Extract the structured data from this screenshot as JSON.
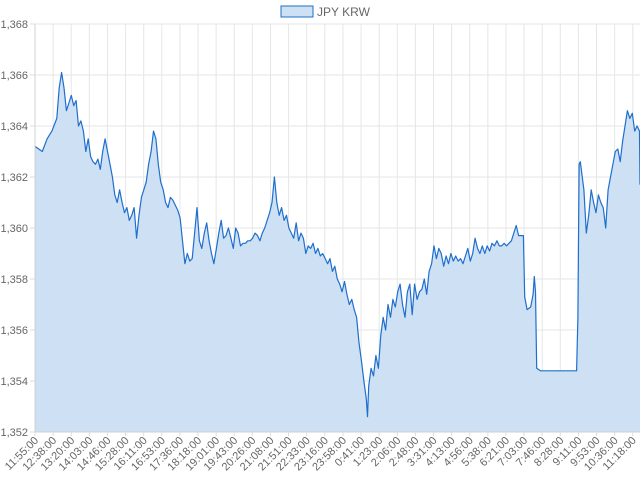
{
  "chart_data": {
    "type": "area",
    "legend_position": "top-center",
    "grid": true,
    "ylim": [
      1352,
      1368
    ],
    "y_ticks": [
      "1,368",
      "1,366",
      "1,364",
      "1,362",
      "1,360",
      "1,358",
      "1,356",
      "1,354",
      "1,352"
    ],
    "x_ticks": [
      "11:55:00",
      "12:38:00",
      "13:20:00",
      "14:03:00",
      "14:46:00",
      "15:28:00",
      "16:11:00",
      "16:53:00",
      "17:36:00",
      "18:18:00",
      "19:01:00",
      "19:43:00",
      "20:26:00",
      "21:08:00",
      "21:51:00",
      "22:33:00",
      "23:16:00",
      "23:58:00",
      "0:41:00",
      "1:23:00",
      "2:06:00",
      "2:48:00",
      "3:31:00",
      "4:13:00",
      "4:56:00",
      "5:38:00",
      "6:21:00",
      "7:03:00",
      "7:46:00",
      "8:28:00",
      "9:11:00",
      "9:53:00",
      "10:36:00",
      "11:18:00"
    ],
    "series": [
      {
        "name": "JPY KRW",
        "color": "#1f6fcc",
        "fill": "#cde0f4",
        "points": [
          [
            0.0,
            1363.2
          ],
          [
            0.3,
            1363.0
          ],
          [
            0.5,
            1363.5
          ],
          [
            0.7,
            1363.8
          ],
          [
            0.9,
            1364.3
          ],
          [
            1.0,
            1365.5
          ],
          [
            1.1,
            1366.1
          ],
          [
            1.2,
            1365.5
          ],
          [
            1.3,
            1364.6
          ],
          [
            1.4,
            1364.9
          ],
          [
            1.5,
            1365.2
          ],
          [
            1.6,
            1364.8
          ],
          [
            1.7,
            1365.0
          ],
          [
            1.8,
            1364.0
          ],
          [
            1.9,
            1364.2
          ],
          [
            2.0,
            1363.8
          ],
          [
            2.1,
            1363.0
          ],
          [
            2.2,
            1363.5
          ],
          [
            2.3,
            1362.8
          ],
          [
            2.4,
            1362.6
          ],
          [
            2.5,
            1362.5
          ],
          [
            2.6,
            1362.7
          ],
          [
            2.7,
            1362.3
          ],
          [
            2.8,
            1363.0
          ],
          [
            2.9,
            1363.5
          ],
          [
            3.0,
            1363.0
          ],
          [
            3.1,
            1362.5
          ],
          [
            3.2,
            1362.0
          ],
          [
            3.3,
            1361.3
          ],
          [
            3.4,
            1361.0
          ],
          [
            3.5,
            1361.5
          ],
          [
            3.6,
            1361.0
          ],
          [
            3.7,
            1360.6
          ],
          [
            3.8,
            1360.8
          ],
          [
            3.9,
            1360.3
          ],
          [
            4.0,
            1360.5
          ],
          [
            4.1,
            1360.8
          ],
          [
            4.2,
            1359.6
          ],
          [
            4.3,
            1360.5
          ],
          [
            4.4,
            1361.2
          ],
          [
            4.5,
            1361.5
          ],
          [
            4.6,
            1361.8
          ],
          [
            4.7,
            1362.5
          ],
          [
            4.8,
            1363.0
          ],
          [
            4.9,
            1363.8
          ],
          [
            5.0,
            1363.5
          ],
          [
            5.1,
            1362.5
          ],
          [
            5.2,
            1361.8
          ],
          [
            5.3,
            1361.5
          ],
          [
            5.4,
            1361.0
          ],
          [
            5.5,
            1360.8
          ],
          [
            5.6,
            1361.2
          ],
          [
            5.7,
            1361.1
          ],
          [
            5.8,
            1360.9
          ],
          [
            5.9,
            1360.7
          ],
          [
            6.0,
            1360.4
          ],
          [
            6.1,
            1359.5
          ],
          [
            6.2,
            1358.6
          ],
          [
            6.3,
            1359.0
          ],
          [
            6.4,
            1358.7
          ],
          [
            6.5,
            1358.8
          ],
          [
            6.6,
            1359.8
          ],
          [
            6.7,
            1360.8
          ],
          [
            6.8,
            1359.5
          ],
          [
            6.9,
            1359.2
          ],
          [
            7.0,
            1359.8
          ],
          [
            7.1,
            1360.2
          ],
          [
            7.2,
            1359.5
          ],
          [
            7.3,
            1359.0
          ],
          [
            7.4,
            1358.6
          ],
          [
            7.5,
            1359.2
          ],
          [
            7.6,
            1359.8
          ],
          [
            7.7,
            1360.3
          ],
          [
            7.8,
            1359.6
          ],
          [
            7.9,
            1359.7
          ],
          [
            8.0,
            1360.0
          ],
          [
            8.1,
            1359.6
          ],
          [
            8.2,
            1359.2
          ],
          [
            8.3,
            1360.0
          ],
          [
            8.4,
            1359.8
          ],
          [
            8.5,
            1359.3
          ],
          [
            8.6,
            1359.4
          ],
          [
            8.7,
            1359.4
          ],
          [
            8.8,
            1359.5
          ],
          [
            8.9,
            1359.5
          ],
          [
            9.0,
            1359.6
          ],
          [
            9.1,
            1359.8
          ],
          [
            9.2,
            1359.7
          ],
          [
            9.3,
            1359.5
          ],
          [
            9.4,
            1359.8
          ],
          [
            9.5,
            1360.0
          ],
          [
            9.6,
            1360.3
          ],
          [
            9.7,
            1360.6
          ],
          [
            9.8,
            1361.0
          ],
          [
            9.9,
            1362.0
          ],
          [
            10.0,
            1361.0
          ],
          [
            10.1,
            1360.5
          ],
          [
            10.2,
            1360.8
          ],
          [
            10.3,
            1360.3
          ],
          [
            10.4,
            1360.5
          ],
          [
            10.5,
            1360.0
          ],
          [
            10.6,
            1359.8
          ],
          [
            10.7,
            1359.6
          ],
          [
            10.8,
            1360.2
          ],
          [
            10.9,
            1359.5
          ],
          [
            11.0,
            1359.8
          ],
          [
            11.1,
            1359.6
          ],
          [
            11.2,
            1359.0
          ],
          [
            11.3,
            1359.3
          ],
          [
            11.4,
            1359.2
          ],
          [
            11.5,
            1359.4
          ],
          [
            11.6,
            1359.0
          ],
          [
            11.7,
            1359.2
          ],
          [
            11.8,
            1358.9
          ],
          [
            11.9,
            1359.0
          ],
          [
            12.0,
            1358.8
          ],
          [
            12.1,
            1358.6
          ],
          [
            12.2,
            1358.8
          ],
          [
            12.3,
            1358.3
          ],
          [
            12.4,
            1358.5
          ],
          [
            12.5,
            1358.0
          ],
          [
            12.6,
            1357.8
          ],
          [
            12.7,
            1357.5
          ],
          [
            12.8,
            1357.9
          ],
          [
            12.9,
            1357.4
          ],
          [
            13.0,
            1357.0
          ],
          [
            13.1,
            1357.2
          ],
          [
            13.2,
            1356.8
          ],
          [
            13.3,
            1356.5
          ],
          [
            13.4,
            1355.5
          ],
          [
            13.5,
            1354.8
          ],
          [
            13.6,
            1354.0
          ],
          [
            13.7,
            1353.3
          ],
          [
            13.75,
            1352.6
          ],
          [
            13.8,
            1353.8
          ],
          [
            13.9,
            1354.5
          ],
          [
            14.0,
            1354.2
          ],
          [
            14.1,
            1355.0
          ],
          [
            14.2,
            1354.5
          ],
          [
            14.3,
            1355.8
          ],
          [
            14.4,
            1356.5
          ],
          [
            14.5,
            1356.0
          ],
          [
            14.6,
            1357.0
          ],
          [
            14.7,
            1356.5
          ],
          [
            14.8,
            1357.2
          ],
          [
            14.9,
            1356.9
          ],
          [
            15.0,
            1357.5
          ],
          [
            15.1,
            1357.8
          ],
          [
            15.2,
            1357.0
          ],
          [
            15.3,
            1356.5
          ],
          [
            15.4,
            1357.5
          ],
          [
            15.5,
            1357.8
          ],
          [
            15.6,
            1356.6
          ],
          [
            15.7,
            1357.8
          ],
          [
            15.8,
            1357.2
          ],
          [
            15.9,
            1357.5
          ],
          [
            16.0,
            1357.6
          ],
          [
            16.1,
            1358.0
          ],
          [
            16.2,
            1357.4
          ],
          [
            16.3,
            1358.3
          ],
          [
            16.4,
            1358.6
          ],
          [
            16.5,
            1359.3
          ],
          [
            16.6,
            1358.8
          ],
          [
            16.7,
            1359.2
          ],
          [
            16.8,
            1359.0
          ],
          [
            16.9,
            1358.5
          ],
          [
            17.0,
            1358.9
          ],
          [
            17.1,
            1358.6
          ],
          [
            17.2,
            1359.0
          ],
          [
            17.3,
            1358.7
          ],
          [
            17.4,
            1358.9
          ],
          [
            17.5,
            1358.7
          ],
          [
            17.6,
            1358.8
          ],
          [
            17.7,
            1358.6
          ],
          [
            17.8,
            1358.9
          ],
          [
            17.9,
            1359.2
          ],
          [
            18.0,
            1358.7
          ],
          [
            18.1,
            1359.0
          ],
          [
            18.2,
            1359.6
          ],
          [
            18.3,
            1359.2
          ],
          [
            18.4,
            1359.0
          ],
          [
            18.5,
            1359.3
          ],
          [
            18.6,
            1359.0
          ],
          [
            18.7,
            1359.3
          ],
          [
            18.8,
            1359.1
          ],
          [
            18.9,
            1359.4
          ],
          [
            19.0,
            1359.3
          ],
          [
            19.1,
            1359.5
          ],
          [
            19.2,
            1359.3
          ],
          [
            19.3,
            1359.3
          ],
          [
            19.4,
            1359.4
          ],
          [
            19.5,
            1359.3
          ],
          [
            19.6,
            1359.4
          ],
          [
            19.7,
            1359.5
          ],
          [
            19.8,
            1359.8
          ],
          [
            19.9,
            1360.1
          ],
          [
            20.0,
            1359.7
          ],
          [
            20.1,
            1359.7
          ],
          [
            20.2,
            1359.7
          ],
          [
            20.25,
            1357.3
          ],
          [
            20.35,
            1356.8
          ],
          [
            20.5,
            1356.9
          ],
          [
            20.6,
            1357.4
          ],
          [
            20.65,
            1358.1
          ],
          [
            20.7,
            1357.5
          ],
          [
            20.75,
            1354.5
          ],
          [
            20.9,
            1354.4
          ],
          [
            21.2,
            1354.4
          ],
          [
            21.6,
            1354.4
          ],
          [
            22.0,
            1354.4
          ],
          [
            22.4,
            1354.4
          ],
          [
            22.45,
            1356.5
          ],
          [
            22.5,
            1362.5
          ],
          [
            22.55,
            1362.6
          ],
          [
            22.7,
            1361.5
          ],
          [
            22.8,
            1359.8
          ],
          [
            22.9,
            1360.5
          ],
          [
            23.0,
            1361.5
          ],
          [
            23.1,
            1361.0
          ],
          [
            23.2,
            1360.6
          ],
          [
            23.3,
            1361.3
          ],
          [
            23.4,
            1361.0
          ],
          [
            23.5,
            1360.8
          ],
          [
            23.6,
            1360.0
          ],
          [
            23.7,
            1361.5
          ],
          [
            23.8,
            1362.0
          ],
          [
            23.9,
            1362.5
          ],
          [
            24.0,
            1363.0
          ],
          [
            24.1,
            1363.1
          ],
          [
            24.2,
            1362.6
          ],
          [
            24.3,
            1363.4
          ],
          [
            24.4,
            1364.0
          ],
          [
            24.5,
            1364.6
          ],
          [
            24.6,
            1364.3
          ],
          [
            24.7,
            1364.5
          ],
          [
            24.8,
            1363.8
          ],
          [
            24.9,
            1364.0
          ],
          [
            25.0,
            1363.8
          ],
          [
            25.02,
            1361.7
          ]
        ]
      }
    ]
  }
}
